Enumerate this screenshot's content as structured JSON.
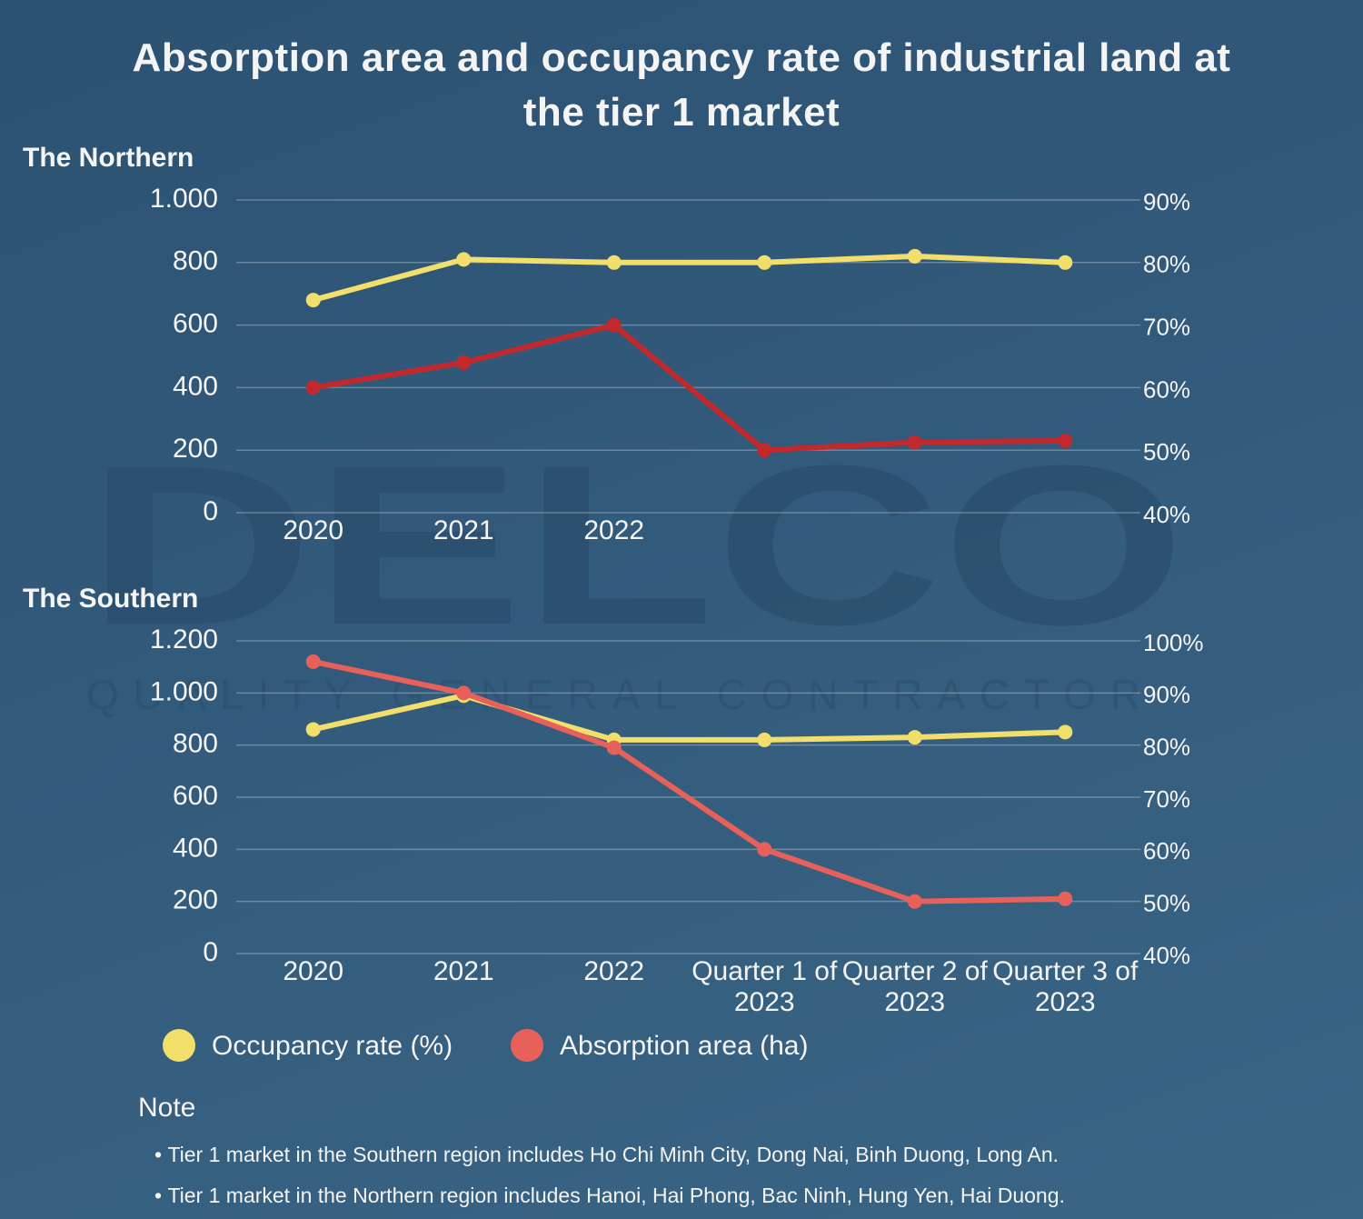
{
  "title": "Absorption area and occupancy rate of industrial land at the tier 1 market",
  "watermark": {
    "brand": "DELCO",
    "tagline": "QUALITY GENERAL CONTRACTOR"
  },
  "chart_data": [
    {
      "type": "line",
      "subtitle": "The Northern",
      "categories": [
        "2020",
        "2021",
        "2022",
        null,
        null,
        null
      ],
      "series": [
        {
          "name": null,
          "color": "#f2df6b",
          "axis": "y2",
          "values": [
            74,
            80.5,
            80,
            80,
            81,
            80
          ]
        },
        {
          "name": null,
          "color": "#c3282d",
          "values": [
            400,
            480,
            600,
            200,
            225,
            230
          ]
        }
      ],
      "ylim": [
        0,
        1000
      ],
      "yticks": [
        0,
        200,
        400,
        600,
        800,
        {
          "value": 1000,
          "label": "1.000"
        }
      ],
      "y2lim": [
        40,
        90
      ],
      "y2ticks": [
        {
          "value": 40,
          "label": "40%"
        },
        {
          "value": 50,
          "label": "50%"
        },
        {
          "value": 60,
          "label": "60%"
        },
        {
          "value": 70,
          "label": "70%"
        },
        {
          "value": 80,
          "label": "80%"
        },
        {
          "value": 90,
          "label": "90%"
        }
      ],
      "grid": true
    },
    {
      "type": "line",
      "subtitle": "The Southern",
      "categories": [
        "2020",
        "2021",
        "2022",
        "Quarter 1 of 2023",
        "Quarter 2 of 2023",
        "Quarter 3 of 2023"
      ],
      "series": [
        {
          "name": "Occupancy rate (%)",
          "color": "#f2df6b",
          "axis": "y2",
          "values": [
            83,
            89.5,
            81,
            81,
            81.5,
            82.5
          ]
        },
        {
          "name": "Absorption area (ha)",
          "color": "#e8605a",
          "values": [
            1120,
            1000,
            790,
            400,
            200,
            210
          ]
        }
      ],
      "ylim": [
        0,
        1200
      ],
      "yticks": [
        0,
        200,
        400,
        600,
        800,
        {
          "value": 1000,
          "label": "1.000"
        },
        {
          "value": 1200,
          "label": "1.200"
        }
      ],
      "y2lim": [
        40,
        100
      ],
      "y2ticks": [
        {
          "value": 40,
          "label": "40%"
        },
        {
          "value": 50,
          "label": "50%"
        },
        {
          "value": 60,
          "label": "60%"
        },
        {
          "value": 70,
          "label": "70%"
        },
        {
          "value": 80,
          "label": "80%"
        },
        {
          "value": 90,
          "label": "90%"
        },
        {
          "value": 100,
          "label": "100%"
        }
      ],
      "grid": true
    }
  ],
  "note": {
    "title": "Note",
    "items": [
      "Tier 1 market in the Southern region includes Ho Chi Minh City, Dong Nai, Binh Duong, Long An.",
      "Tier 1 market in the Northern region includes Hanoi, Hai Phong, Bac Ninh, Hung Yen, Hai Duong."
    ]
  }
}
